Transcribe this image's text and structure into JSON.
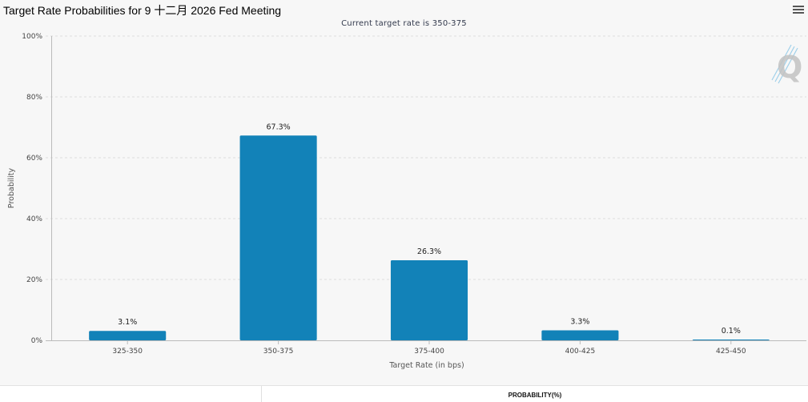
{
  "header": {
    "title": "Target Rate Probabilities for 9 十二月 2026 Fed Meeting",
    "menu_icon": "hamburger-menu-icon"
  },
  "watermark": {
    "icon": "q-logo-icon",
    "text": "Q"
  },
  "table": {
    "column_header": "PROBABILITY(%)"
  },
  "colors": {
    "bar": "#1282b8",
    "grid": "#dcdcdc",
    "axis": "#bbbbbb"
  },
  "chart_data": {
    "type": "bar",
    "title": "Target Rate Probabilities for 9 十二月 2026 Fed Meeting",
    "subtitle": "Current target rate is 350-375",
    "xlabel": "Target Rate (in bps)",
    "ylabel": "Probability",
    "categories": [
      "325-350",
      "350-375",
      "375-400",
      "400-425",
      "425-450"
    ],
    "values": [
      3.1,
      67.3,
      26.3,
      3.3,
      0.1
    ],
    "data_labels": [
      "3.1%",
      "67.3%",
      "26.3%",
      "3.3%",
      "0.1%"
    ],
    "ylim": [
      0,
      100
    ],
    "yticks": [
      0,
      20,
      40,
      60,
      80,
      100
    ],
    "ytick_labels": [
      "0%",
      "20%",
      "40%",
      "60%",
      "80%",
      "100%"
    ],
    "grid": true,
    "legend": "none"
  }
}
